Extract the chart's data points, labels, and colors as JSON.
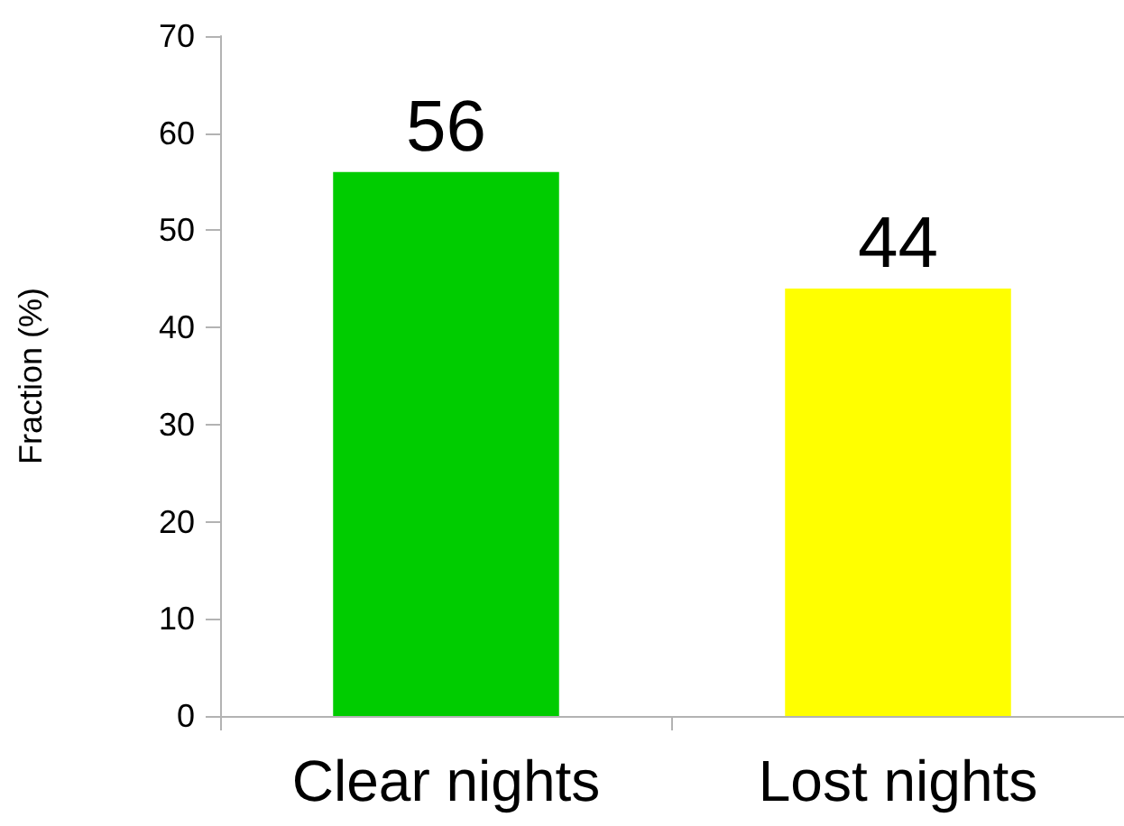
{
  "chart_data": {
    "type": "bar",
    "ylabel": "Fraction (%)",
    "categories": [
      "Clear nights",
      "Lost nights"
    ],
    "values": [
      56,
      44
    ],
    "colors": [
      "#00cc00",
      "#ffff00"
    ],
    "ylim": [
      0,
      70
    ],
    "yticks": [
      0,
      10,
      20,
      30,
      40,
      50,
      60,
      70
    ],
    "grid": false,
    "data_labels": true
  }
}
